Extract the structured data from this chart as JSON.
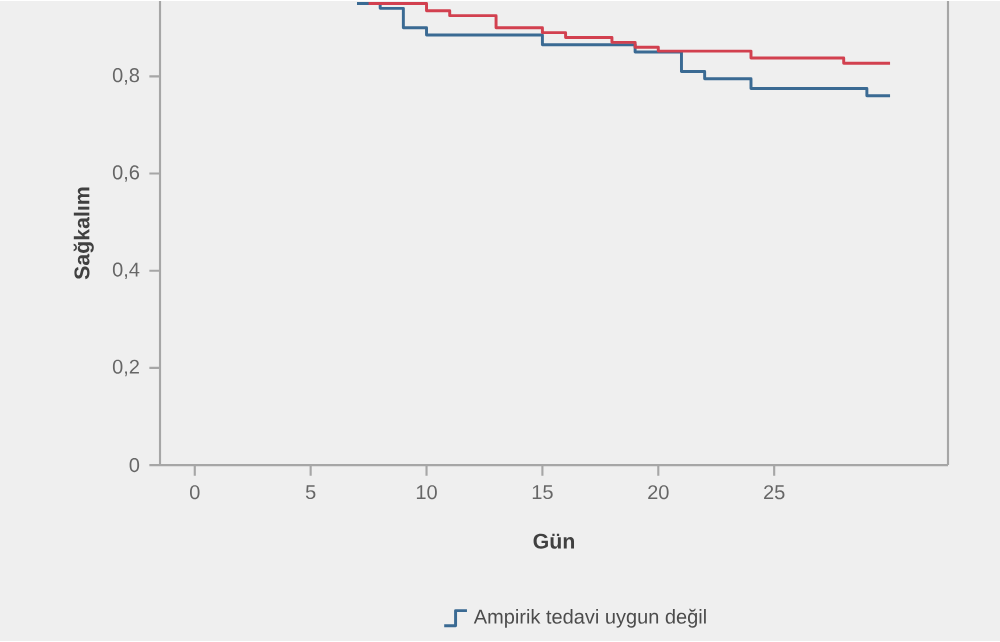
{
  "chart_data": {
    "type": "step",
    "xlabel": "Gün",
    "ylabel": "Sağkalım",
    "xlim": [
      -1.5,
      32.5
    ],
    "ylim": [
      0,
      0.955
    ],
    "xticks": [
      0,
      5,
      10,
      15,
      20,
      25
    ],
    "yticks": [
      0,
      {
        "value": 0.2,
        "label": "0,2"
      },
      {
        "value": 0.4,
        "label": "0,4"
      },
      {
        "value": 0.6,
        "label": "0,6"
      },
      {
        "value": 0.8,
        "label": "0,8"
      }
    ],
    "legend": "bottom",
    "series": [
      {
        "name": "Ampirik tedavi uygun değil",
        "color": "#3a6a93",
        "x": [
          7,
          8,
          9,
          10,
          15,
          19,
          21,
          22,
          24,
          29,
          30
        ],
        "values": [
          0.95,
          0.94,
          0.9,
          0.885,
          0.865,
          0.85,
          0.81,
          0.795,
          0.775,
          0.76,
          0.76
        ]
      },
      {
        "color": "#d2404f",
        "x": [
          7.5,
          10,
          11,
          13,
          15,
          16,
          18,
          19,
          20,
          24,
          28,
          30
        ],
        "values": [
          0.95,
          0.935,
          0.925,
          0.9,
          0.89,
          0.88,
          0.87,
          0.86,
          0.852,
          0.838,
          0.827,
          0.827
        ]
      }
    ]
  }
}
